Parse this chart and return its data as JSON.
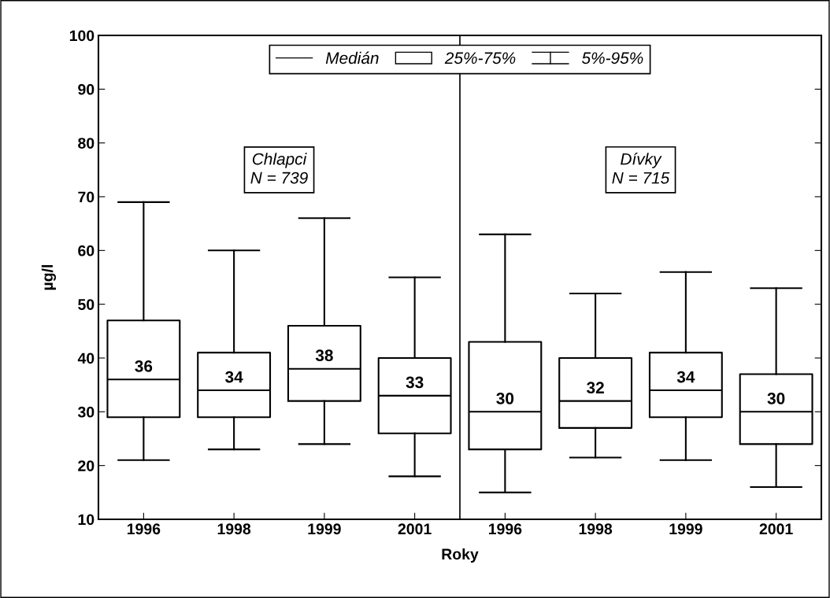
{
  "chart_data": {
    "type": "box",
    "xlabel": "Roky",
    "ylabel": "µg/l",
    "categories": [
      "1996",
      "1998",
      "1999",
      "2001",
      "1996",
      "1998",
      "1999",
      "2001"
    ],
    "boxes": [
      {
        "low": 21,
        "q1": 29,
        "median": 36,
        "q3": 47,
        "high": 69
      },
      {
        "low": 23,
        "q1": 29,
        "median": 34,
        "q3": 41,
        "high": 60
      },
      {
        "low": 24,
        "q1": 32,
        "median": 38,
        "q3": 46,
        "high": 66
      },
      {
        "low": 18,
        "q1": 26,
        "median": 33,
        "q3": 40,
        "high": 55
      },
      {
        "low": 15,
        "q1": 23,
        "median": 30,
        "q3": 43,
        "high": 63
      },
      {
        "low": 21.5,
        "q1": 27,
        "median": 32,
        "q3": 40,
        "high": 52
      },
      {
        "low": 21,
        "q1": 29,
        "median": 34,
        "q3": 41,
        "high": 56
      },
      {
        "low": 16,
        "q1": 24,
        "median": 30,
        "q3": 37,
        "high": 53
      }
    ],
    "ylim": [
      10,
      100
    ],
    "yticks": [
      10,
      20,
      30,
      40,
      50,
      60,
      70,
      80,
      90,
      100
    ],
    "value_labels": [
      "36",
      "34",
      "38",
      "33",
      "30",
      "32",
      "34",
      "30"
    ],
    "grid": false,
    "annotations": [
      "Medián",
      "25%-75%",
      "5%-95%",
      "Chlapci\nN = 739",
      "Dívky\nN = 715"
    ]
  }
}
